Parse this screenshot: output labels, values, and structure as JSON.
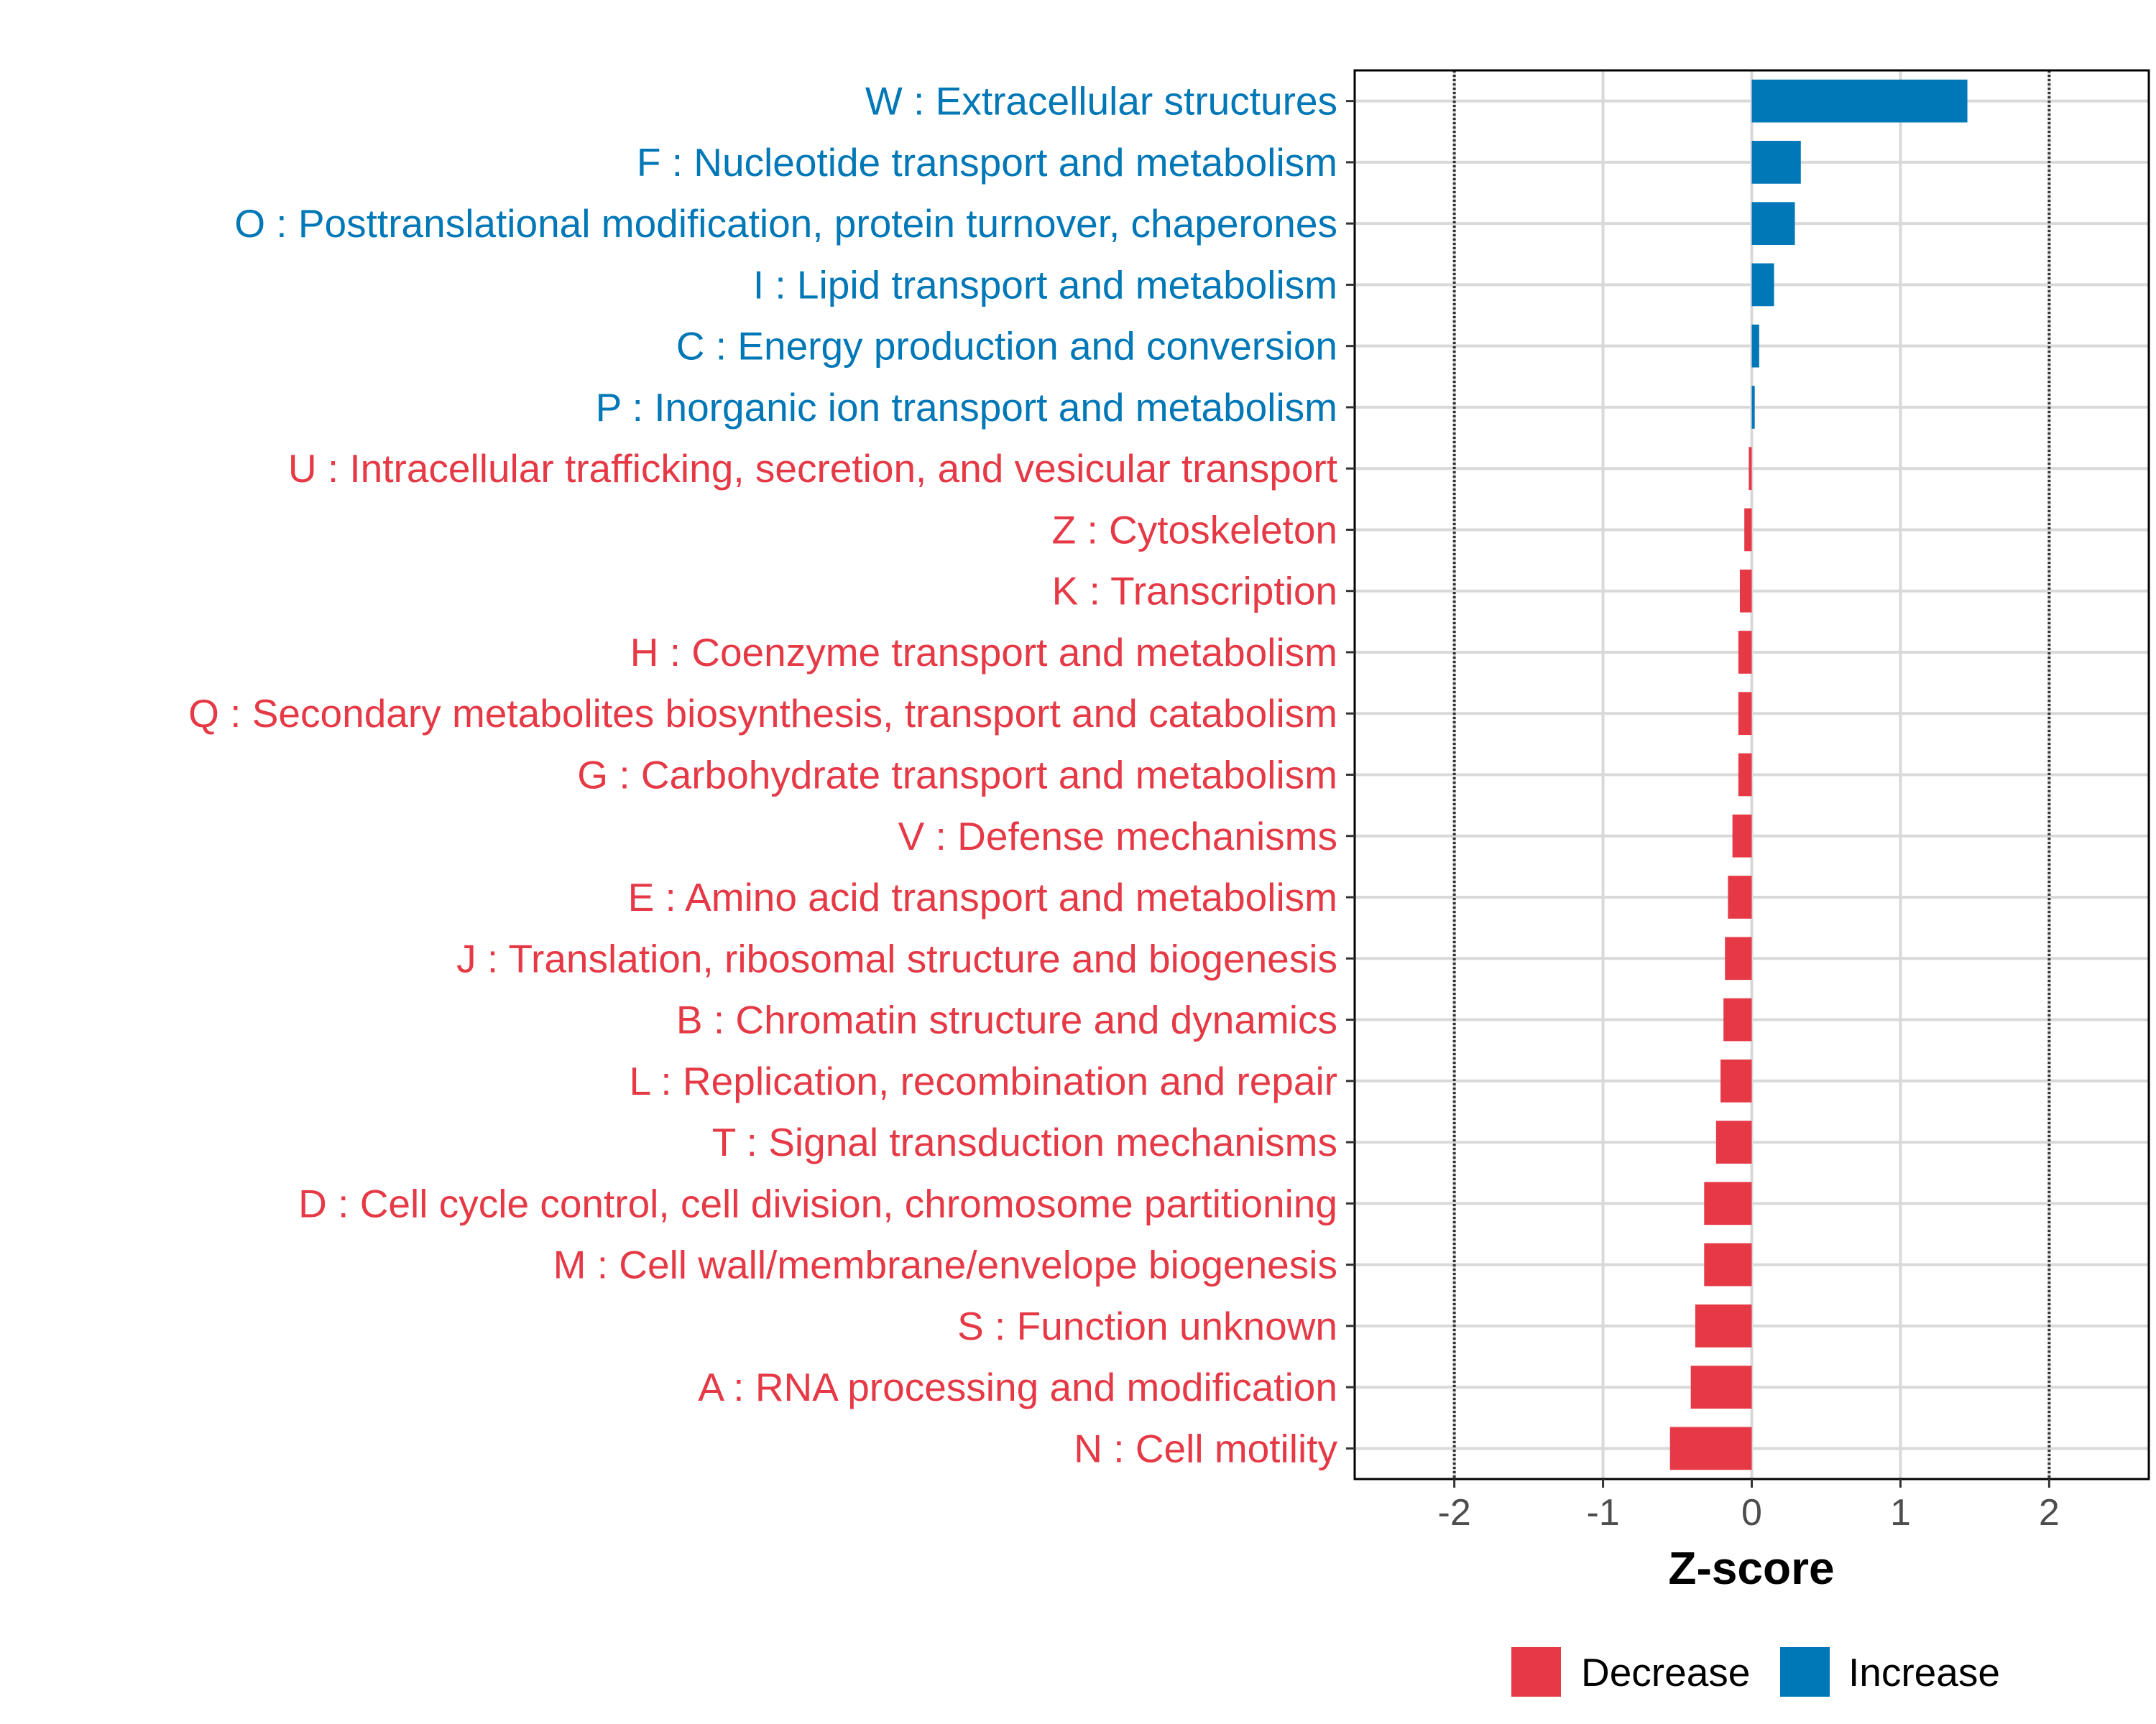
{
  "chart_data": {
    "type": "bar",
    "orientation": "horizontal",
    "xlabel": "Z-score",
    "ylabel": "",
    "xlim": [
      -2.67,
      2.67
    ],
    "xticks": [
      -2,
      -1,
      0,
      1,
      2
    ],
    "tick_labels": [
      "-2",
      "-1",
      "0",
      "1",
      "2"
    ],
    "threshold_lines": [
      -2,
      2
    ],
    "grid": true,
    "legend_position": "bottom",
    "colors": {
      "Decrease": "#E63946",
      "Increase": "#0077B6"
    },
    "legend": [
      {
        "label": "Decrease",
        "color": "#E63946"
      },
      {
        "label": "Increase",
        "color": "#0077B6"
      }
    ],
    "categories": [
      "W : Extracellular structures",
      "F : Nucleotide transport and metabolism",
      "O : Posttranslational modification, protein turnover, chaperones",
      "I : Lipid transport and metabolism",
      "C : Energy production and conversion",
      "P : Inorganic ion transport and metabolism",
      "U : Intracellular trafficking, secretion, and vesicular transport",
      "Z : Cytoskeleton",
      "K : Transcription",
      "H : Coenzyme transport and metabolism",
      "Q : Secondary metabolites biosynthesis, transport and catabolism",
      "G : Carbohydrate transport and metabolism",
      "V : Defense mechanisms",
      "E : Amino acid transport and metabolism",
      "J : Translation, ribosomal structure and biogenesis",
      "B : Chromatin structure and dynamics",
      "L : Replication, recombination and repair",
      "T : Signal transduction mechanisms",
      "D : Cell cycle control, cell division, chromosome partitioning",
      "M : Cell wall/membrane/envelope biogenesis",
      "S : Function unknown",
      "A : RNA processing and modification",
      "N : Cell motility"
    ],
    "values": [
      1.45,
      0.33,
      0.29,
      0.15,
      0.05,
      0.02,
      -0.02,
      -0.05,
      -0.08,
      -0.09,
      -0.09,
      -0.09,
      -0.13,
      -0.16,
      -0.18,
      -0.19,
      -0.21,
      -0.24,
      -0.32,
      -0.32,
      -0.38,
      -0.41,
      -0.55
    ],
    "direction": [
      "Increase",
      "Increase",
      "Increase",
      "Increase",
      "Increase",
      "Increase",
      "Decrease",
      "Decrease",
      "Decrease",
      "Decrease",
      "Decrease",
      "Decrease",
      "Decrease",
      "Decrease",
      "Decrease",
      "Decrease",
      "Decrease",
      "Decrease",
      "Decrease",
      "Decrease",
      "Decrease",
      "Decrease",
      "Decrease"
    ]
  }
}
